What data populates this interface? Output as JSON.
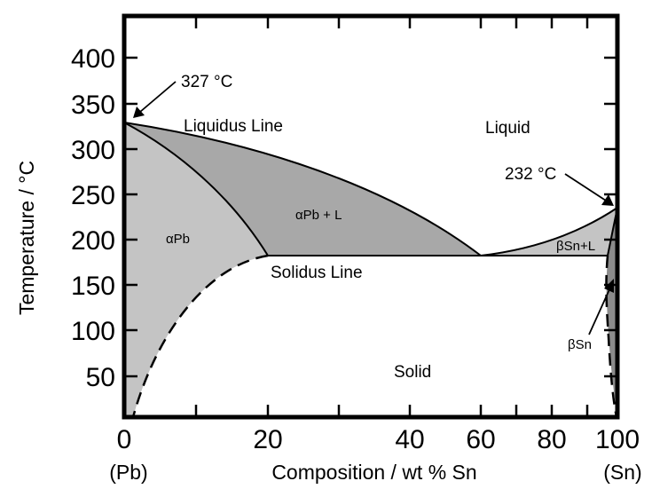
{
  "y_axis": {
    "title": "Temperature / °C",
    "ticks": [
      "400",
      "350",
      "300",
      "250",
      "200",
      "150",
      "100",
      "50"
    ]
  },
  "x_axis": {
    "title": "Composition / wt % Sn",
    "ticks": [
      "0",
      "20",
      "40",
      "60",
      "80",
      "100"
    ],
    "left_end_label": "(Pb)",
    "right_end_label": "(Sn)"
  },
  "annotations": {
    "pb_melting": "327 °C",
    "sn_melting": "232 °C",
    "liquidus": "Liquidus Line",
    "solidus": "Solidus Line"
  },
  "regions": {
    "liquid": "Liquid",
    "alpha_pb": "αPb",
    "alpha_pb_l": "αPb + L",
    "beta_sn_l": "βSn+L",
    "beta_sn": "βSn",
    "solid": "Solid"
  },
  "colors": {
    "alpha_region": "#c4c4c4",
    "two_phase_region": "#a8a8a8",
    "beta_region": "#8c8c8c",
    "line": "#000000"
  }
}
